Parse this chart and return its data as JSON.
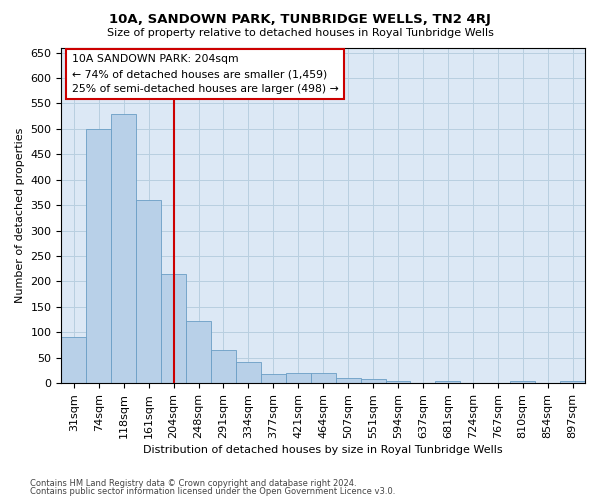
{
  "title": "10A, SANDOWN PARK, TUNBRIDGE WELLS, TN2 4RJ",
  "subtitle": "Size of property relative to detached houses in Royal Tunbridge Wells",
  "xlabel": "Distribution of detached houses by size in Royal Tunbridge Wells",
  "ylabel": "Number of detached properties",
  "footnote1": "Contains HM Land Registry data © Crown copyright and database right 2024.",
  "footnote2": "Contains public sector information licensed under the Open Government Licence v3.0.",
  "annotation_title": "10A SANDOWN PARK: 204sqm",
  "annotation_line1": "← 74% of detached houses are smaller (1,459)",
  "annotation_line2": "25% of semi-detached houses are larger (498) →",
  "bar_color": "#b8d0e8",
  "bar_edge_color": "#6a9ec5",
  "marker_color": "#cc0000",
  "categories": [
    "31sqm",
    "74sqm",
    "118sqm",
    "161sqm",
    "204sqm",
    "248sqm",
    "291sqm",
    "334sqm",
    "377sqm",
    "421sqm",
    "464sqm",
    "507sqm",
    "551sqm",
    "594sqm",
    "637sqm",
    "681sqm",
    "724sqm",
    "767sqm",
    "810sqm",
    "854sqm",
    "897sqm"
  ],
  "values": [
    90,
    500,
    530,
    360,
    215,
    123,
    66,
    41,
    18,
    20,
    20,
    11,
    9,
    5,
    0,
    4,
    0,
    0,
    4,
    0,
    4
  ],
  "marker_index": 4,
  "ylim": [
    0,
    660
  ],
  "yticks": [
    0,
    50,
    100,
    150,
    200,
    250,
    300,
    350,
    400,
    450,
    500,
    550,
    600,
    650
  ],
  "ax_facecolor": "#dce8f5",
  "background_color": "#ffffff",
  "grid_color": "#b8cfe0"
}
